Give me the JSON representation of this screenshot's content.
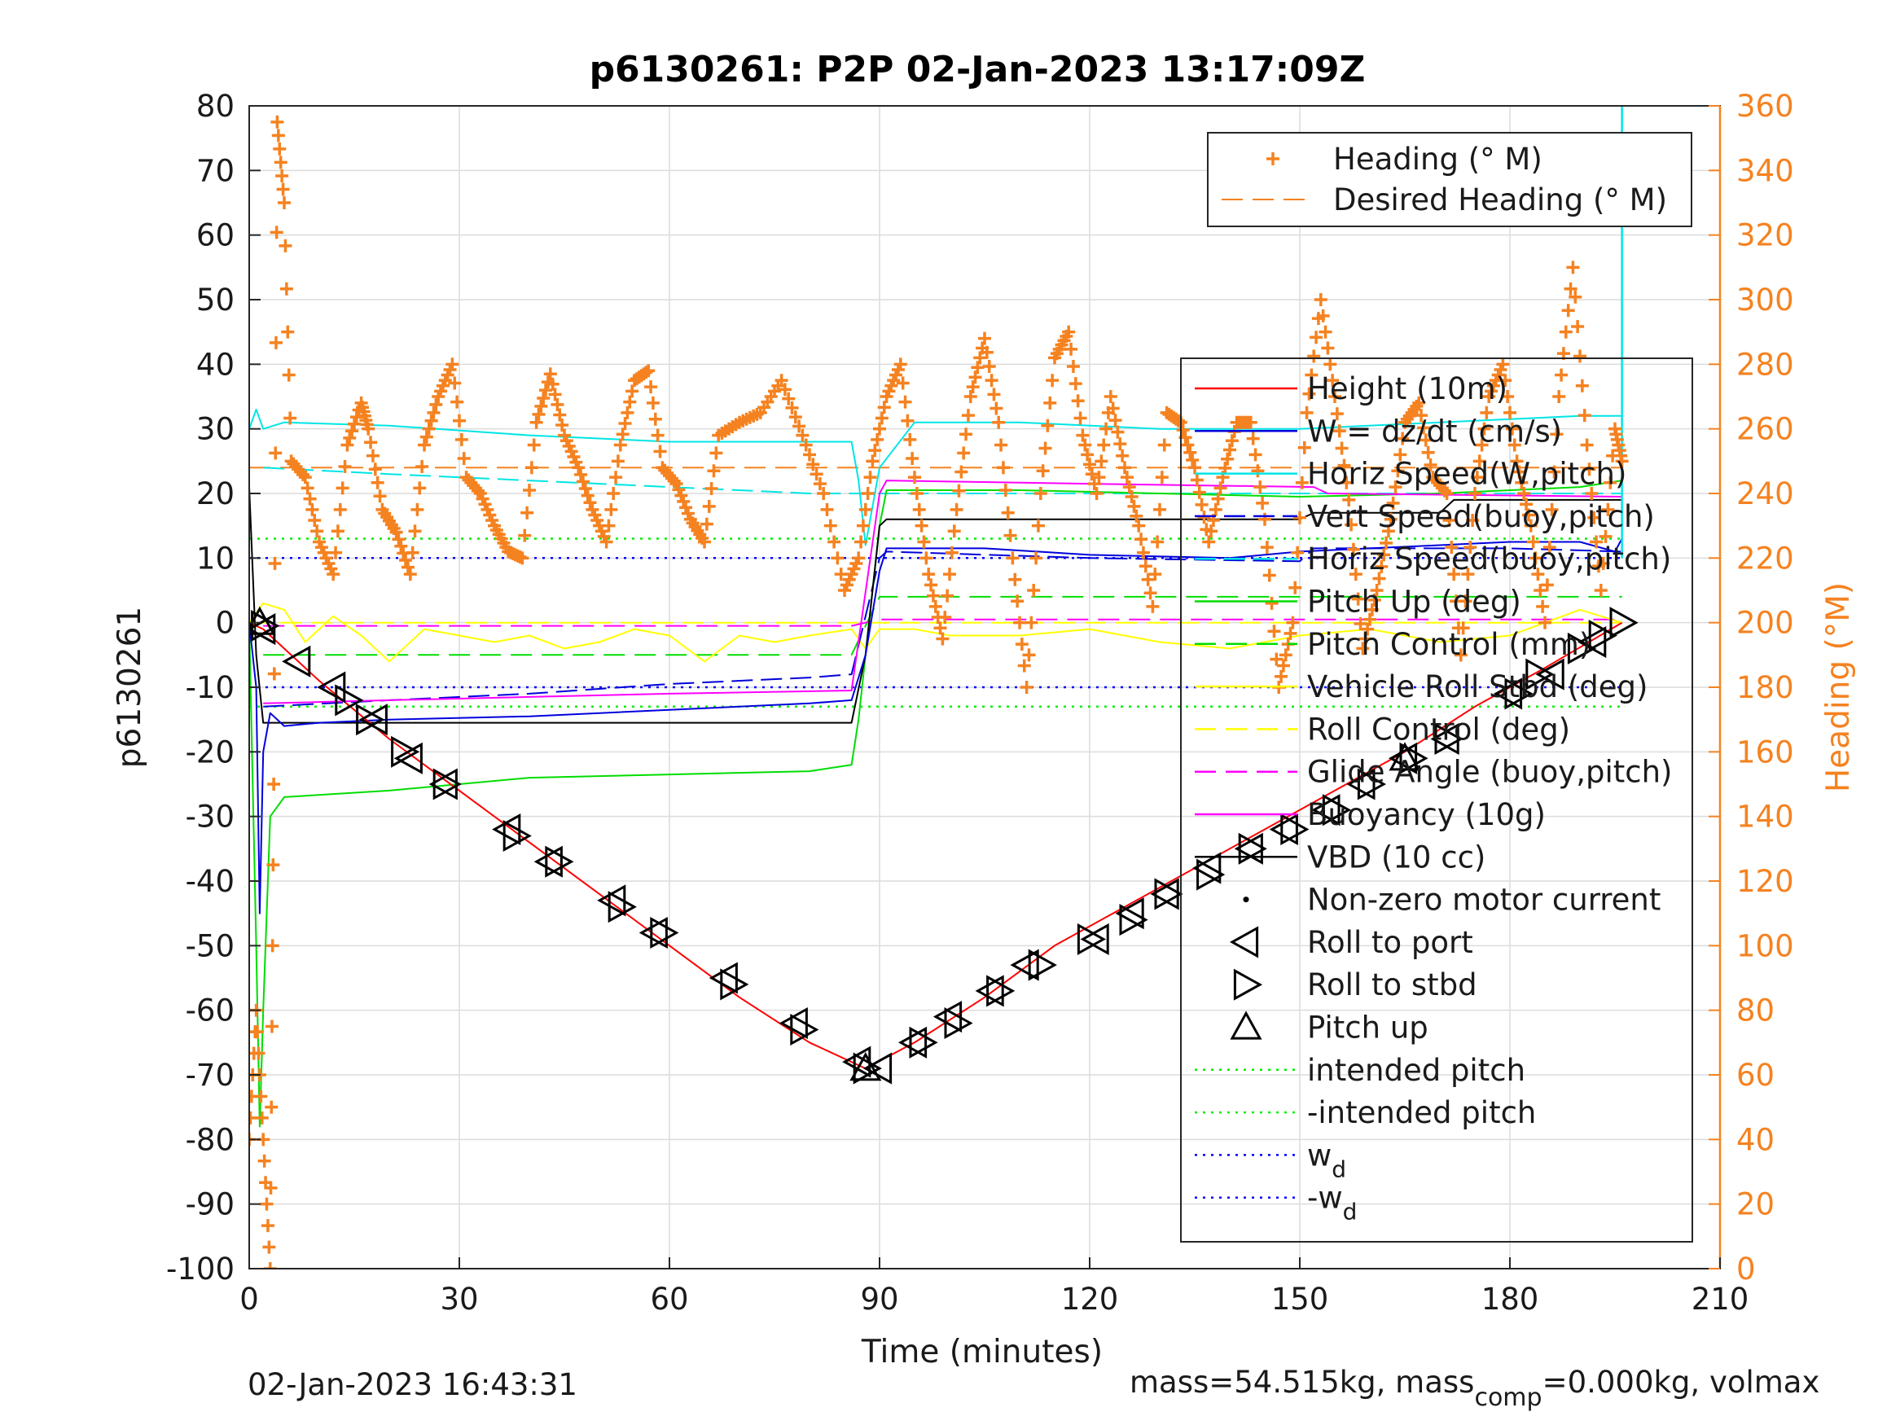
{
  "chart_data": {
    "type": "line",
    "title": "p6130261: P2P 02-Jan-2023 13:17:09Z",
    "xlabel": "Time (minutes)",
    "ylabel_left": "p6130261",
    "ylabel_right": "Heading (°M)",
    "xlim": [
      0,
      210
    ],
    "ylim_left": [
      -100,
      80
    ],
    "ylim_right": [
      0,
      360
    ],
    "x_ticks": [
      0,
      30,
      60,
      90,
      120,
      150,
      180,
      210
    ],
    "y_ticks_left": [
      80,
      70,
      60,
      50,
      40,
      30,
      20,
      10,
      0,
      -10,
      -20,
      -30,
      -40,
      -50,
      -60,
      -70,
      -80,
      -90,
      -100
    ],
    "y_ticks_right": [
      360,
      340,
      320,
      300,
      280,
      260,
      240,
      220,
      200,
      180,
      160,
      140,
      120,
      100,
      80,
      60,
      40,
      20,
      0
    ],
    "grid": true,
    "colors": {
      "heading": "#f58220",
      "height": "#ff0000",
      "w": "#0000dd",
      "horiz_w": "#00e5e5",
      "vert_buoy": "#0000dd",
      "horiz_buoy": "#00e5e5",
      "pitch": "#00dd00",
      "pitch_control": "#00dd00",
      "roll": "#ffff00",
      "roll_control": "#ffff00",
      "glide_angle": "#ff00ff",
      "buoyancy": "#ff00ff",
      "vbd": "#000000",
      "intended_pitch": "#00ee00",
      "wd": "#0000ff",
      "markers": "#000000"
    },
    "legend_right_axis": {
      "placement": "top-right",
      "entries": [
        "Heading (° M)",
        "Desired Heading (° M)"
      ]
    },
    "legend_left_axis": {
      "placement": "right",
      "entries": [
        "Height (10m)",
        "W = dz/dt (cm/s)",
        "Horiz Speed(W,pitch)",
        "Vert Speed(buoy,pitch)",
        "Horiz Speed(buoy,pitch)",
        "Pitch Up (deg)",
        "Pitch Control (mm)",
        "Vehicle Roll Stbd (deg)",
        "Roll Control (deg)",
        "Glide Angle (buoy,pitch)",
        "Buoyancy (10g)",
        "VBD (10 cc)",
        "Non-zero motor current",
        "Roll to port",
        "Roll to stbd",
        "Pitch up",
        "intended pitch",
        "-intended pitch",
        "w",
        "-w"
      ],
      "subscript": "d"
    },
    "series": [
      {
        "name": "Height (10m)",
        "axis": "left",
        "x": [
          0,
          2,
          10,
          20,
          30,
          40,
          50,
          60,
          70,
          80,
          88,
          95,
          105,
          115,
          125,
          135,
          145,
          155,
          165,
          175,
          185,
          196
        ],
        "y": [
          0,
          -1,
          -9,
          -18,
          -26,
          -34,
          -42,
          -50,
          -58,
          -65,
          -69,
          -65,
          -58,
          -50,
          -44,
          -38,
          -32,
          -26,
          -20,
          -13,
          -7,
          0
        ]
      },
      {
        "name": "W = dz/dt (cm/s)",
        "axis": "left",
        "x": [
          0,
          1,
          1.5,
          2,
          3,
          5,
          10,
          20,
          40,
          60,
          80,
          86,
          88,
          90,
          91,
          95,
          105,
          120,
          140,
          150,
          160,
          170,
          180,
          190,
          195,
          196
        ],
        "y": [
          0,
          -10,
          -45,
          -20,
          -14,
          -16,
          -15.5,
          -15,
          -14.5,
          -13.5,
          -12.5,
          -12,
          -5,
          8,
          11.5,
          11.5,
          11.5,
          10.5,
          10,
          11,
          11.5,
          12,
          12.5,
          12.5,
          11,
          13
        ]
      },
      {
        "name": "Horiz Speed(W,pitch)",
        "axis": "left",
        "x": [
          0,
          1,
          2,
          5,
          20,
          40,
          60,
          80,
          86,
          87,
          88,
          90,
          95,
          110,
          130,
          150,
          170,
          190,
          196
        ],
        "y": [
          30,
          33,
          30,
          31,
          30.5,
          29,
          28,
          28,
          28,
          22,
          12,
          24,
          31,
          31,
          30,
          30,
          31,
          32,
          32
        ]
      },
      {
        "name": "Vert Speed(buoy,pitch)",
        "axis": "left",
        "x": [
          2,
          20,
          40,
          60,
          80,
          86,
          90,
          91,
          120,
          150,
          152,
          180,
          196
        ],
        "y": [
          -13,
          -12,
          -11,
          -9.5,
          -8.5,
          -8,
          10,
          11,
          10,
          9.5,
          11.5,
          11.5,
          11
        ]
      },
      {
        "name": "Horiz Speed(buoy,pitch)",
        "axis": "left",
        "x": [
          2,
          20,
          40,
          60,
          80,
          86,
          90,
          91,
          120,
          150,
          180,
          196
        ],
        "y": [
          24,
          23,
          22,
          21,
          20,
          20,
          20,
          20,
          20,
          20,
          20,
          20
        ]
      },
      {
        "name": "Pitch Up (deg)",
        "axis": "left",
        "x": [
          0,
          1,
          1.5,
          2,
          3,
          5,
          20,
          40,
          60,
          80,
          86,
          87,
          89,
          90,
          91,
          110,
          130,
          150,
          170,
          190,
          196
        ],
        "y": [
          0,
          -50,
          -78,
          -60,
          -30,
          -27,
          -26,
          -24,
          -23.5,
          -23,
          -22,
          -15,
          5,
          15,
          20.5,
          20.5,
          20,
          19.5,
          20,
          21,
          22
        ]
      },
      {
        "name": "Pitch Control (mm)",
        "axis": "left",
        "x": [
          2,
          86,
          90,
          196
        ],
        "y": [
          -5,
          -5,
          4,
          4
        ]
      },
      {
        "name": "Vehicle Roll Stbd (deg)",
        "axis": "left",
        "x": [
          0,
          2,
          5,
          8,
          12,
          16,
          20,
          25,
          30,
          35,
          40,
          45,
          50,
          55,
          60,
          65,
          70,
          75,
          80,
          86,
          88,
          90,
          95,
          100,
          110,
          120,
          130,
          140,
          150,
          160,
          170,
          180,
          190,
          196
        ],
        "y": [
          0,
          3,
          2,
          -3,
          1,
          -2,
          -6,
          -1,
          -2,
          -3,
          -2,
          -4,
          -3,
          -1,
          -2,
          -6,
          -2,
          -3,
          -2,
          -1,
          -4,
          -1,
          -1,
          -2,
          -2,
          -1,
          -3,
          -4,
          -2,
          -1,
          -3,
          -2,
          2,
          0
        ]
      },
      {
        "name": "Roll Control (deg)",
        "axis": "left",
        "x": [
          0,
          196
        ],
        "y": [
          0,
          0
        ]
      },
      {
        "name": "Glide Angle (buoy,pitch)",
        "axis": "left",
        "x": [
          2,
          86,
          90,
          196
        ],
        "y": [
          -0.5,
          -0.5,
          0.5,
          0.5
        ]
      },
      {
        "name": "Buoyancy (10g)",
        "axis": "left",
        "x": [
          2,
          20,
          40,
          60,
          86,
          90,
          91,
          120,
          152,
          154,
          196
        ],
        "y": [
          -12.5,
          -12,
          -11.5,
          -11,
          -10.5,
          20,
          22,
          21.5,
          21,
          20,
          19.5
        ]
      },
      {
        "name": "VBD (10 cc)",
        "axis": "left",
        "x": [
          0,
          1,
          2,
          86,
          88,
          90,
          91,
          130,
          150,
          152,
          170,
          172,
          196
        ],
        "y": [
          21,
          -5,
          -15.5,
          -15.5,
          -5,
          15,
          16,
          16,
          16,
          17,
          17,
          19,
          19
        ]
      },
      {
        "name": "intended pitch",
        "axis": "left",
        "x": [
          0,
          196
        ],
        "y": [
          13,
          13
        ]
      },
      {
        "name": "-intended pitch",
        "axis": "left",
        "x": [
          0,
          196
        ],
        "y": [
          -13,
          -13
        ]
      },
      {
        "name": "w",
        "axis": "left",
        "x": [
          0,
          196
        ],
        "y": [
          10,
          10
        ]
      },
      {
        "name": "-w",
        "axis": "left",
        "x": [
          0,
          196
        ],
        "y": [
          -10,
          -10
        ]
      },
      {
        "name": "Desired Heading (° M)",
        "axis": "right",
        "x": [
          0,
          196
        ],
        "y": [
          248,
          248
        ]
      },
      {
        "name": "Heading (° M)",
        "axis": "right",
        "x": [
          0,
          1,
          2,
          3,
          3.5,
          4,
          5,
          6,
          8,
          10,
          12,
          14,
          16,
          17,
          19,
          21,
          23,
          25,
          27,
          29,
          31,
          33,
          35,
          37,
          39,
          41,
          43,
          45,
          47,
          49,
          51,
          53,
          55,
          57,
          59,
          61,
          63,
          65,
          67,
          70,
          73,
          76,
          79,
          82,
          85,
          87,
          89,
          91,
          93,
          95,
          97,
          99,
          101,
          103,
          105,
          107,
          109,
          111,
          113,
          115,
          117,
          119,
          121,
          123,
          125,
          127,
          129,
          131,
          133,
          135,
          137,
          139,
          141,
          143,
          145,
          147,
          149,
          151,
          153,
          155,
          157,
          159,
          161,
          163,
          165,
          167,
          169,
          171,
          173,
          175,
          177,
          179,
          181,
          183,
          185,
          187,
          189,
          191,
          193,
          195,
          196
        ],
        "y": [
          40,
          80,
          40,
          0,
          150,
          355,
          330,
          250,
          245,
          225,
          215,
          255,
          268,
          260,
          235,
          228,
          215,
          255,
          270,
          280,
          245,
          240,
          230,
          222,
          220,
          262,
          277,
          258,
          248,
          235,
          225,
          255,
          275,
          278,
          248,
          243,
          232,
          225,
          258,
          262,
          265,
          275,
          258,
          240,
          210,
          220,
          250,
          270,
          280,
          245,
          215,
          195,
          235,
          270,
          288,
          262,
          220,
          180,
          240,
          282,
          290,
          258,
          240,
          270,
          248,
          230,
          205,
          265,
          262,
          248,
          225,
          245,
          262,
          262,
          232,
          180,
          200,
          265,
          300,
          270,
          238,
          192,
          210,
          232,
          262,
          268,
          245,
          240,
          190,
          240,
          270,
          280,
          250,
          230,
          200,
          270,
          310,
          255,
          210,
          260,
          250
        ]
      }
    ],
    "markers": [
      {
        "name": "Roll to port",
        "shape": "triangle-left",
        "x": [
          2,
          7,
          12,
          18,
          23,
          28,
          37,
          43,
          52,
          58,
          68,
          78,
          87,
          90,
          95,
          100,
          106,
          111,
          121,
          126,
          131,
          137,
          143,
          148,
          154,
          159,
          165,
          171,
          180,
          186,
          192
        ],
        "y": [
          -1,
          -6,
          -10,
          -15,
          -21,
          -25,
          -32,
          -37,
          -43,
          -48,
          -55,
          -62,
          -68,
          -69,
          -65,
          -61,
          -57,
          -53,
          -49,
          -45,
          -42,
          -38,
          -35,
          -32,
          -29,
          -25,
          -21,
          -18,
          -11,
          -8,
          -3
        ]
      },
      {
        "name": "Roll to stbd",
        "shape": "triangle-right",
        "x": [
          2,
          14,
          17,
          22,
          28,
          38,
          44,
          53,
          59,
          69,
          79,
          88,
          96,
          101,
          107,
          113,
          120,
          126,
          131,
          137,
          143,
          149,
          155,
          160,
          166,
          171,
          181,
          184,
          190,
          193,
          196
        ],
        "y": [
          -0.5,
          -12,
          -15,
          -20,
          -25,
          -33,
          -37,
          -44,
          -48,
          -56,
          -63,
          -69,
          -65,
          -62,
          -57,
          -53,
          -49,
          -46,
          -42,
          -39,
          -35,
          -32,
          -29,
          -25,
          -21,
          -18,
          -11,
          -8,
          -4,
          -2,
          0
        ]
      },
      {
        "name": "Pitch up",
        "shape": "triangle-up",
        "x": [
          1.5,
          88,
          165
        ],
        "y": [
          0,
          -69,
          -21
        ]
      }
    ],
    "footer_left": "02-Jan-2023 16:43:31",
    "footer_right_parts": [
      "mass=54.515kg, mass",
      "comp",
      "=0.000kg, volmax"
    ]
  }
}
